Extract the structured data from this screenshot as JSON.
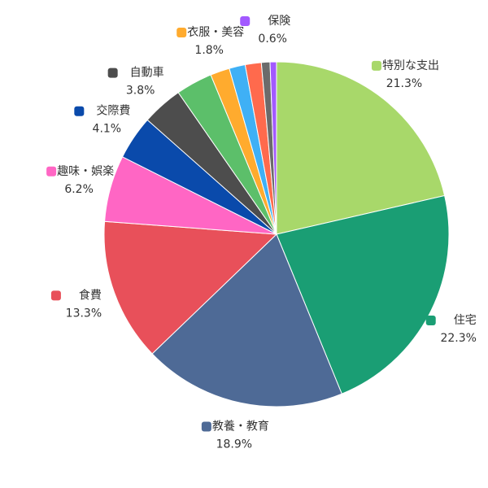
{
  "chart_data": {
    "type": "pie",
    "categories": [
      "特別な支出",
      "住宅",
      "教養・教育",
      "食費",
      "趣味・娯楽",
      "交際費",
      "自動車",
      null,
      "衣服・美容",
      null,
      null,
      null,
      "保険"
    ],
    "values": [
      21.3,
      22.3,
      18.9,
      13.3,
      6.2,
      4.1,
      3.8,
      3.4,
      1.8,
      1.5,
      1.5,
      0.8,
      0.6
    ],
    "value_labels": [
      "21.3%",
      "22.3%",
      "18.9%",
      "13.3%",
      "6.2%",
      "4.1%",
      "3.8%",
      null,
      "1.8%",
      null,
      null,
      null,
      "0.6%"
    ],
    "colors": [
      "#a8d86a",
      "#1a9e74",
      "#4e6a96",
      "#e8505a",
      "#ff66c4",
      "#0a4aab",
      "#4d4d4d",
      "#5cbf6a",
      "#ffab2e",
      "#3fb0f5",
      "#ff6a4d",
      "#6b6b6b",
      "#a259ff"
    ]
  }
}
